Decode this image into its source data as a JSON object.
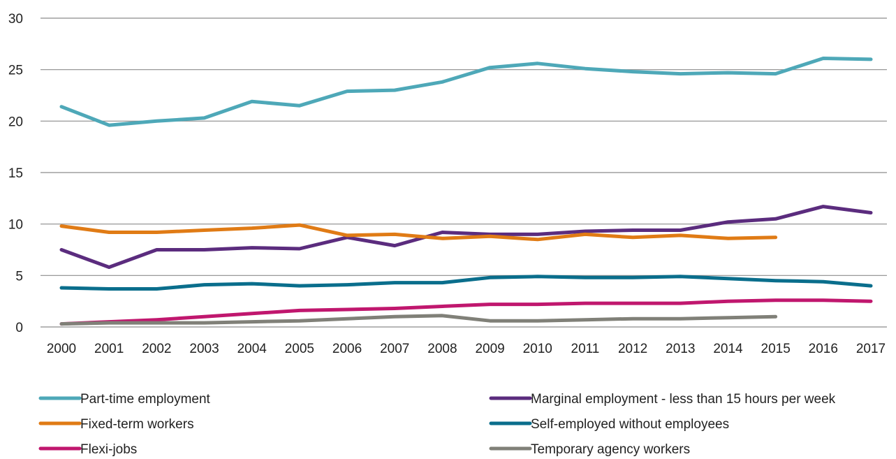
{
  "chart_data": {
    "type": "line",
    "title": "",
    "xlabel": "",
    "ylabel": "",
    "ylim": [
      0,
      30
    ],
    "yticks": [
      "0",
      "5",
      "10",
      "15",
      "20",
      "25",
      "30"
    ],
    "x": [
      "2000",
      "2001",
      "2002",
      "2003",
      "2004",
      "2005",
      "2006",
      "2007",
      "2008",
      "2009",
      "2010",
      "2011",
      "2012",
      "2013",
      "2014",
      "2015",
      "2016",
      "2017"
    ],
    "grid": true,
    "legend_position": "bottom",
    "series": [
      {
        "name": "Part-time employment",
        "color": "#4ea8b8",
        "values": [
          21.4,
          19.6,
          20.0,
          20.3,
          21.9,
          21.5,
          22.9,
          23.0,
          23.8,
          25.2,
          25.6,
          25.1,
          24.8,
          24.6,
          24.7,
          24.6,
          26.1,
          26.0
        ]
      },
      {
        "name": "Marginal employment - less than 15 hours per week",
        "color": "#5b2c7e",
        "values": [
          7.5,
          5.8,
          7.5,
          7.5,
          7.7,
          7.6,
          8.7,
          7.9,
          9.2,
          9.0,
          9.0,
          9.3,
          9.4,
          9.4,
          10.2,
          10.5,
          11.7,
          11.1
        ]
      },
      {
        "name": "Fixed-term workers",
        "color": "#e07b15",
        "values": [
          9.8,
          9.2,
          9.2,
          9.4,
          9.6,
          9.9,
          8.9,
          9.0,
          8.6,
          8.8,
          8.5,
          9.0,
          8.7,
          8.9,
          8.6,
          8.7,
          null,
          null
        ]
      },
      {
        "name": "Self-employed without employees",
        "color": "#0a6e8c",
        "values": [
          3.8,
          3.7,
          3.7,
          4.1,
          4.2,
          4.0,
          4.1,
          4.3,
          4.3,
          4.8,
          4.9,
          4.8,
          4.8,
          4.9,
          4.7,
          4.5,
          4.4,
          4.0
        ]
      },
      {
        "name": "Flexi-jobs",
        "color": "#c0176e",
        "values": [
          0.3,
          0.5,
          0.7,
          1.0,
          1.3,
          1.6,
          1.7,
          1.8,
          2.0,
          2.2,
          2.2,
          2.3,
          2.3,
          2.3,
          2.5,
          2.6,
          2.6,
          2.5
        ]
      },
      {
        "name": "Temporary agency workers",
        "color": "#808078",
        "values": [
          0.3,
          0.4,
          0.4,
          0.4,
          0.5,
          0.6,
          0.8,
          1.0,
          1.1,
          0.6,
          0.6,
          0.7,
          0.8,
          0.8,
          0.9,
          1.0,
          null,
          null
        ]
      }
    ]
  }
}
